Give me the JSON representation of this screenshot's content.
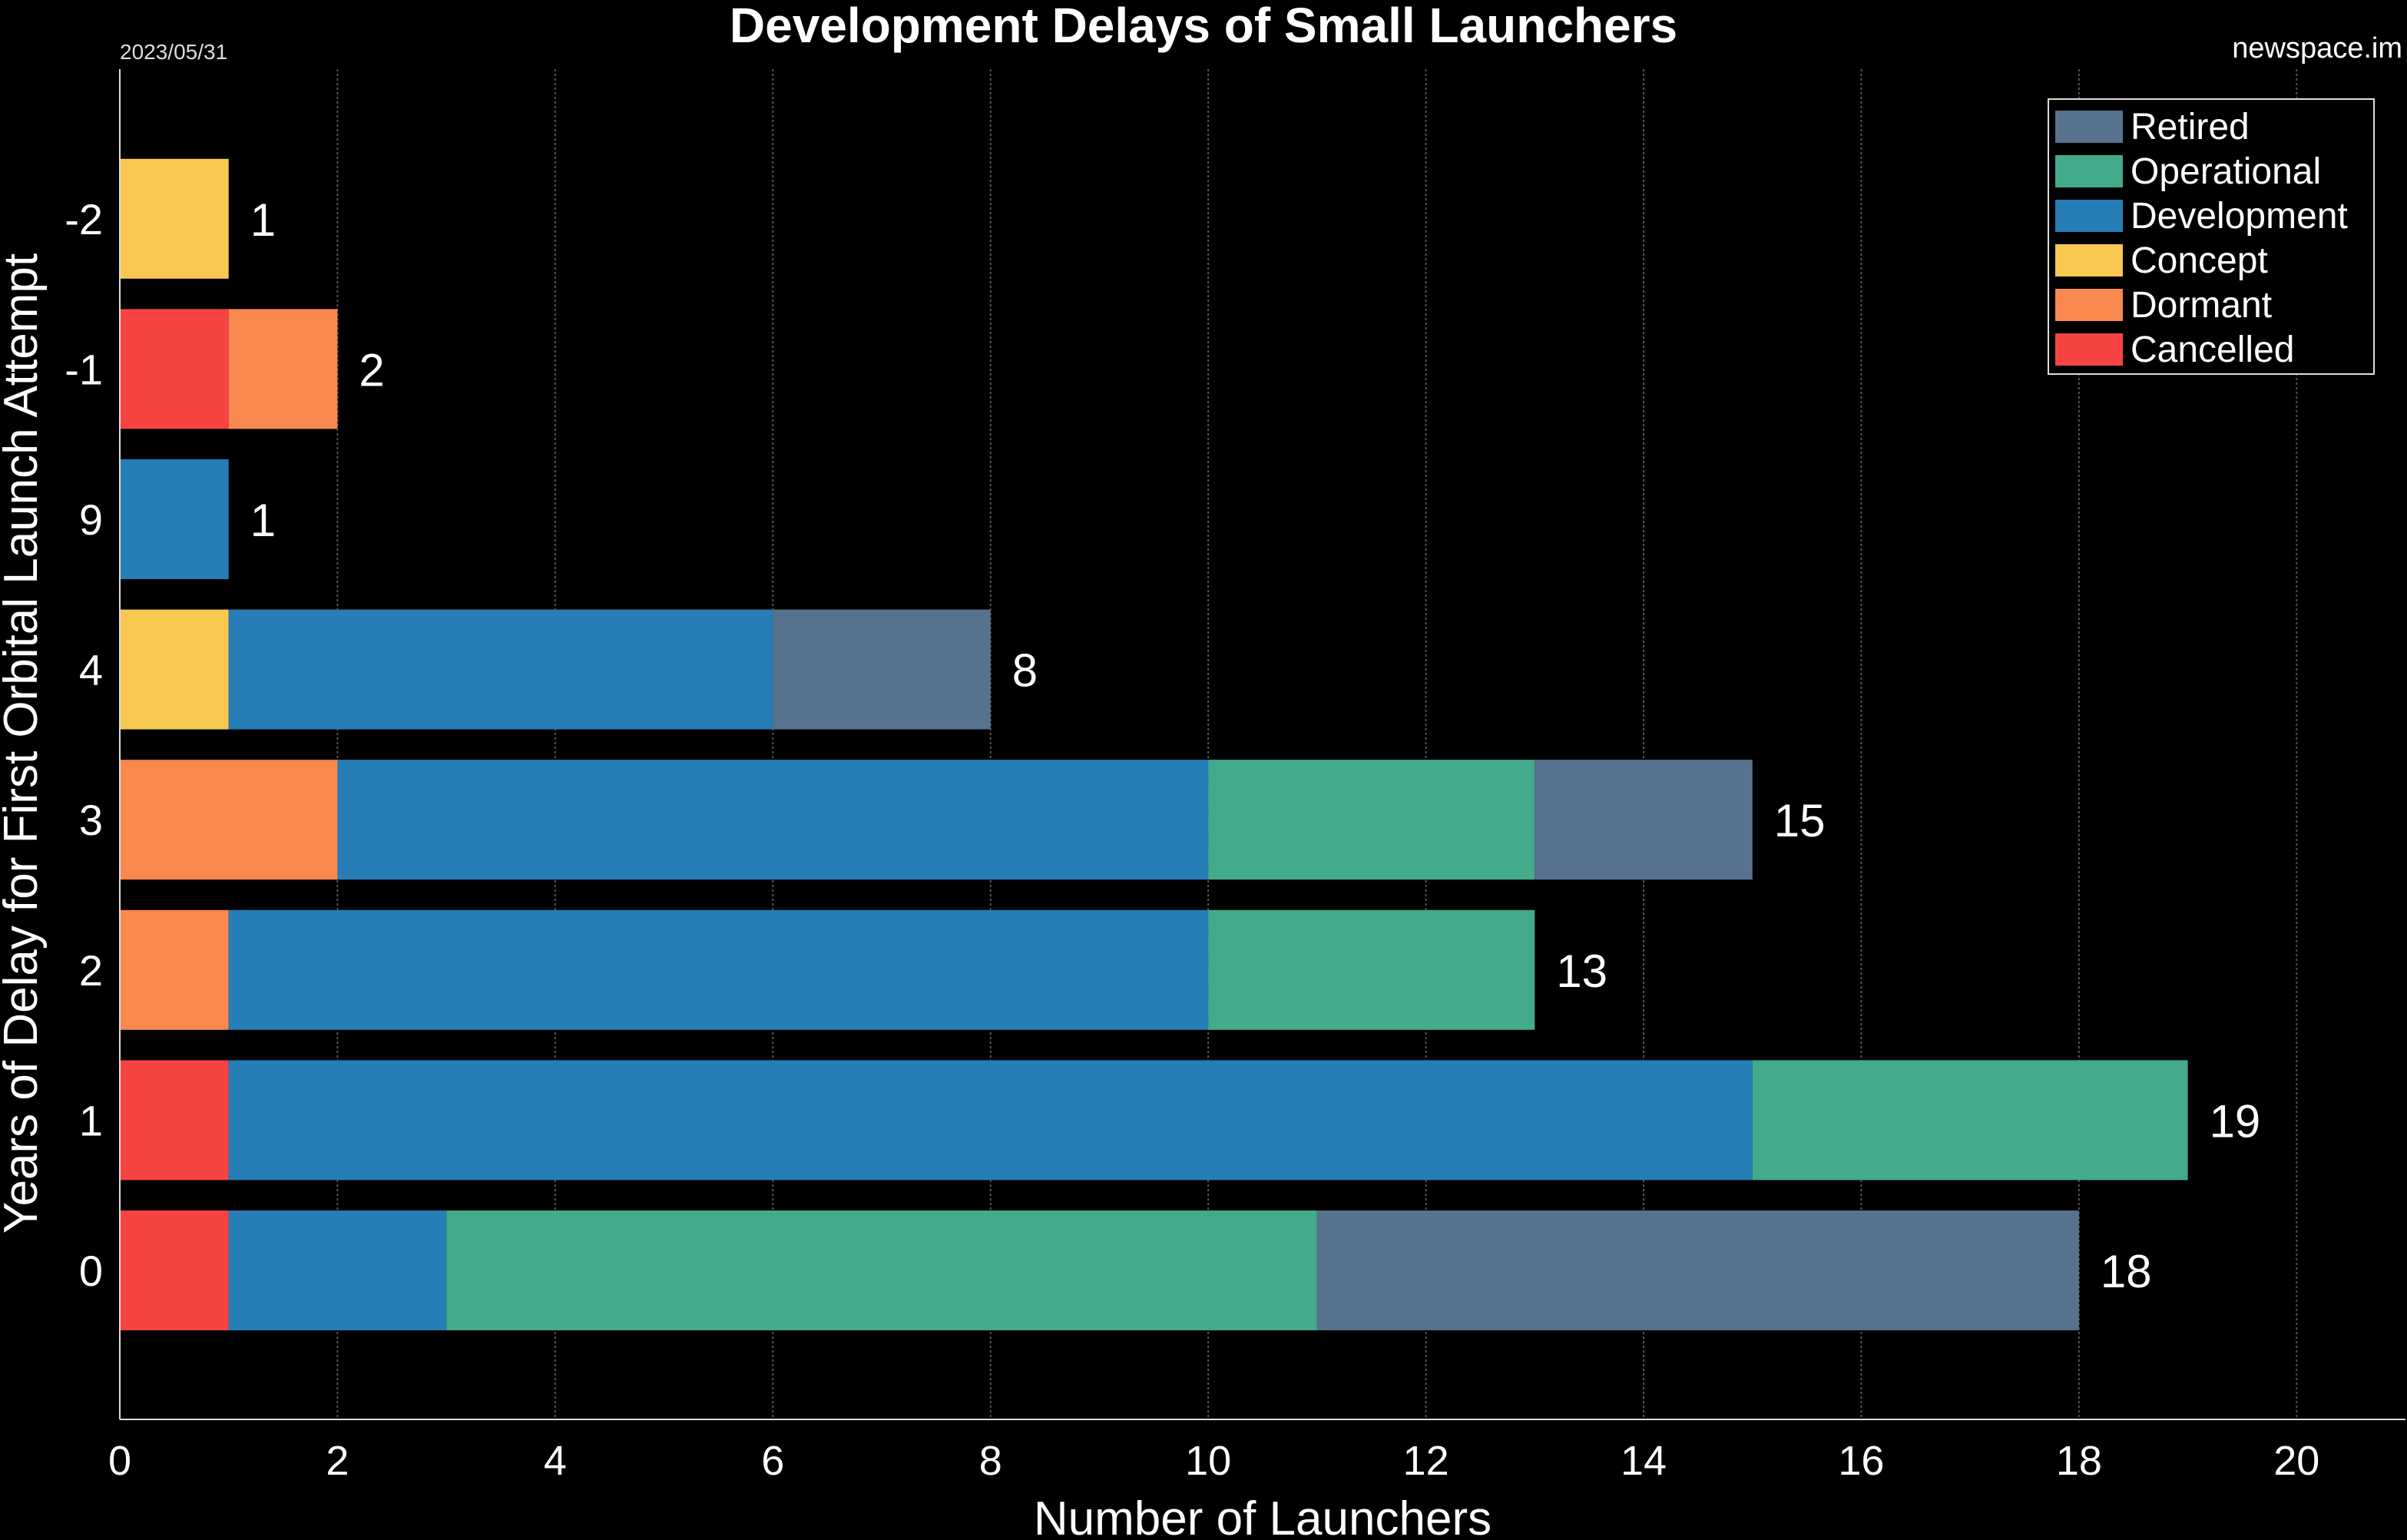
{
  "header": {
    "title": "Development Delays of Small Launchers",
    "date": "2023/05/31",
    "source": "newspace.im"
  },
  "legend": {
    "items": [
      {
        "label": "Retired",
        "color": "#56728f"
      },
      {
        "label": "Operational",
        "color": "#43aa8b"
      },
      {
        "label": "Development",
        "color": "#277db6"
      },
      {
        "label": "Concept",
        "color": "#f9c851"
      },
      {
        "label": "Dormant",
        "color": "#f8884e"
      },
      {
        "label": "Cancelled",
        "color": "#f84343"
      }
    ]
  },
  "chart_data": {
    "type": "bar",
    "orientation": "horizontal",
    "stacked": true,
    "title": "Development Delays of Small Launchers",
    "xlabel": "Number of Launchers",
    "ylabel": "Years of Delay for First Orbital Launch Attempt",
    "xlim": [
      0,
      21
    ],
    "xticks": [
      0,
      2,
      4,
      6,
      8,
      10,
      12,
      14,
      16,
      18,
      20
    ],
    "grid": "vertical",
    "legend_position": "top-right",
    "categories": [
      "0",
      "1",
      "2",
      "3",
      "4",
      "9",
      "-1",
      "-2"
    ],
    "series": [
      {
        "name": "Cancelled",
        "color": "#f84343",
        "values": [
          1,
          1,
          0,
          0,
          0,
          0,
          1,
          0
        ]
      },
      {
        "name": "Dormant",
        "color": "#f8884e",
        "values": [
          0,
          0,
          1,
          2,
          0,
          0,
          1,
          0
        ]
      },
      {
        "name": "Concept",
        "color": "#f9c851",
        "values": [
          0,
          0,
          0,
          0,
          1,
          0,
          0,
          1
        ]
      },
      {
        "name": "Development",
        "color": "#277db6",
        "values": [
          2,
          14,
          9,
          8,
          5,
          1,
          0,
          0
        ]
      },
      {
        "name": "Operational",
        "color": "#43aa8b",
        "values": [
          8,
          4,
          3,
          3,
          0,
          0,
          0,
          0
        ]
      },
      {
        "name": "Retired",
        "color": "#56728f",
        "values": [
          7,
          0,
          0,
          2,
          2,
          0,
          0,
          0
        ]
      }
    ],
    "totals": [
      18,
      19,
      13,
      15,
      8,
      1,
      2,
      1
    ]
  }
}
